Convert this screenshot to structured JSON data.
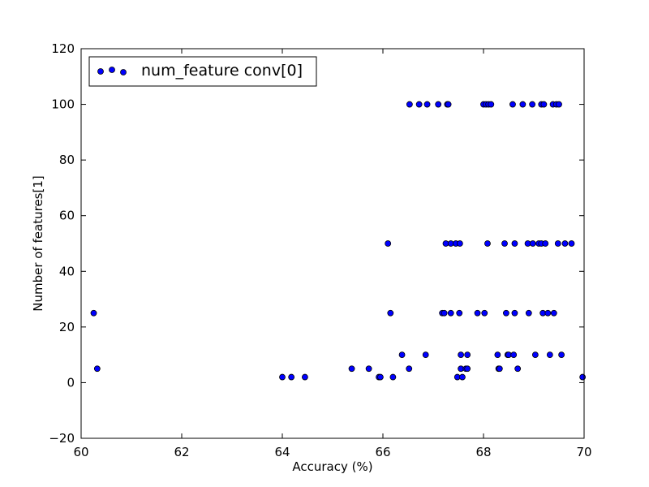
{
  "chart_data": {
    "type": "scatter",
    "xlabel": "Accuracy (%)",
    "ylabel": "Number of features[1]",
    "xlim": [
      60,
      70
    ],
    "ylim": [
      -20,
      120
    ],
    "x_ticks": [
      "60",
      "62",
      "64",
      "66",
      "68",
      "70"
    ],
    "y_ticks": [
      "−20",
      "0",
      "20",
      "40",
      "60",
      "80",
      "100",
      "120"
    ],
    "grid": false,
    "legend": {
      "position": "top-left",
      "label": "num_feature conv[0]"
    },
    "series": [
      {
        "name": "num_feature conv[0]",
        "color": "#0000ff",
        "edge_color": "#000000",
        "points": [
          [
            60.25,
            25
          ],
          [
            60.32,
            5
          ],
          [
            64.0,
            2
          ],
          [
            64.18,
            2
          ],
          [
            64.45,
            2
          ],
          [
            65.38,
            5
          ],
          [
            65.72,
            5
          ],
          [
            65.92,
            2
          ],
          [
            65.95,
            2
          ],
          [
            66.1,
            50
          ],
          [
            66.15,
            25
          ],
          [
            66.2,
            2
          ],
          [
            66.38,
            10
          ],
          [
            66.52,
            5
          ],
          [
            66.53,
            100
          ],
          [
            66.72,
            100
          ],
          [
            66.85,
            10
          ],
          [
            66.88,
            100
          ],
          [
            67.1,
            100
          ],
          [
            67.18,
            25
          ],
          [
            67.22,
            25
          ],
          [
            67.25,
            50
          ],
          [
            67.28,
            100
          ],
          [
            67.3,
            100
          ],
          [
            67.35,
            50
          ],
          [
            67.35,
            25
          ],
          [
            67.45,
            50
          ],
          [
            67.48,
            2
          ],
          [
            67.52,
            25
          ],
          [
            67.53,
            50
          ],
          [
            67.55,
            5
          ],
          [
            67.55,
            10
          ],
          [
            67.58,
            2
          ],
          [
            67.65,
            5
          ],
          [
            67.68,
            10
          ],
          [
            67.68,
            5
          ],
          [
            67.88,
            25
          ],
          [
            68.0,
            100
          ],
          [
            68.02,
            25
          ],
          [
            68.05,
            100
          ],
          [
            68.08,
            50
          ],
          [
            68.1,
            100
          ],
          [
            68.15,
            100
          ],
          [
            68.28,
            10
          ],
          [
            68.3,
            5
          ],
          [
            68.32,
            5
          ],
          [
            68.42,
            50
          ],
          [
            68.45,
            25
          ],
          [
            68.48,
            10
          ],
          [
            68.5,
            10
          ],
          [
            68.58,
            100
          ],
          [
            68.6,
            10
          ],
          [
            68.62,
            50
          ],
          [
            68.62,
            25
          ],
          [
            68.68,
            5
          ],
          [
            68.78,
            100
          ],
          [
            68.88,
            50
          ],
          [
            68.9,
            25
          ],
          [
            68.97,
            100
          ],
          [
            68.98,
            50
          ],
          [
            69.03,
            10
          ],
          [
            69.1,
            50
          ],
          [
            69.15,
            100
          ],
          [
            69.15,
            50
          ],
          [
            69.18,
            25
          ],
          [
            69.2,
            100
          ],
          [
            69.23,
            50
          ],
          [
            69.28,
            25
          ],
          [
            69.32,
            10
          ],
          [
            69.38,
            100
          ],
          [
            69.4,
            25
          ],
          [
            69.45,
            100
          ],
          [
            69.48,
            50
          ],
          [
            69.5,
            100
          ],
          [
            69.55,
            10
          ],
          [
            69.62,
            50
          ],
          [
            69.75,
            50
          ],
          [
            69.97,
            2
          ]
        ]
      }
    ]
  }
}
